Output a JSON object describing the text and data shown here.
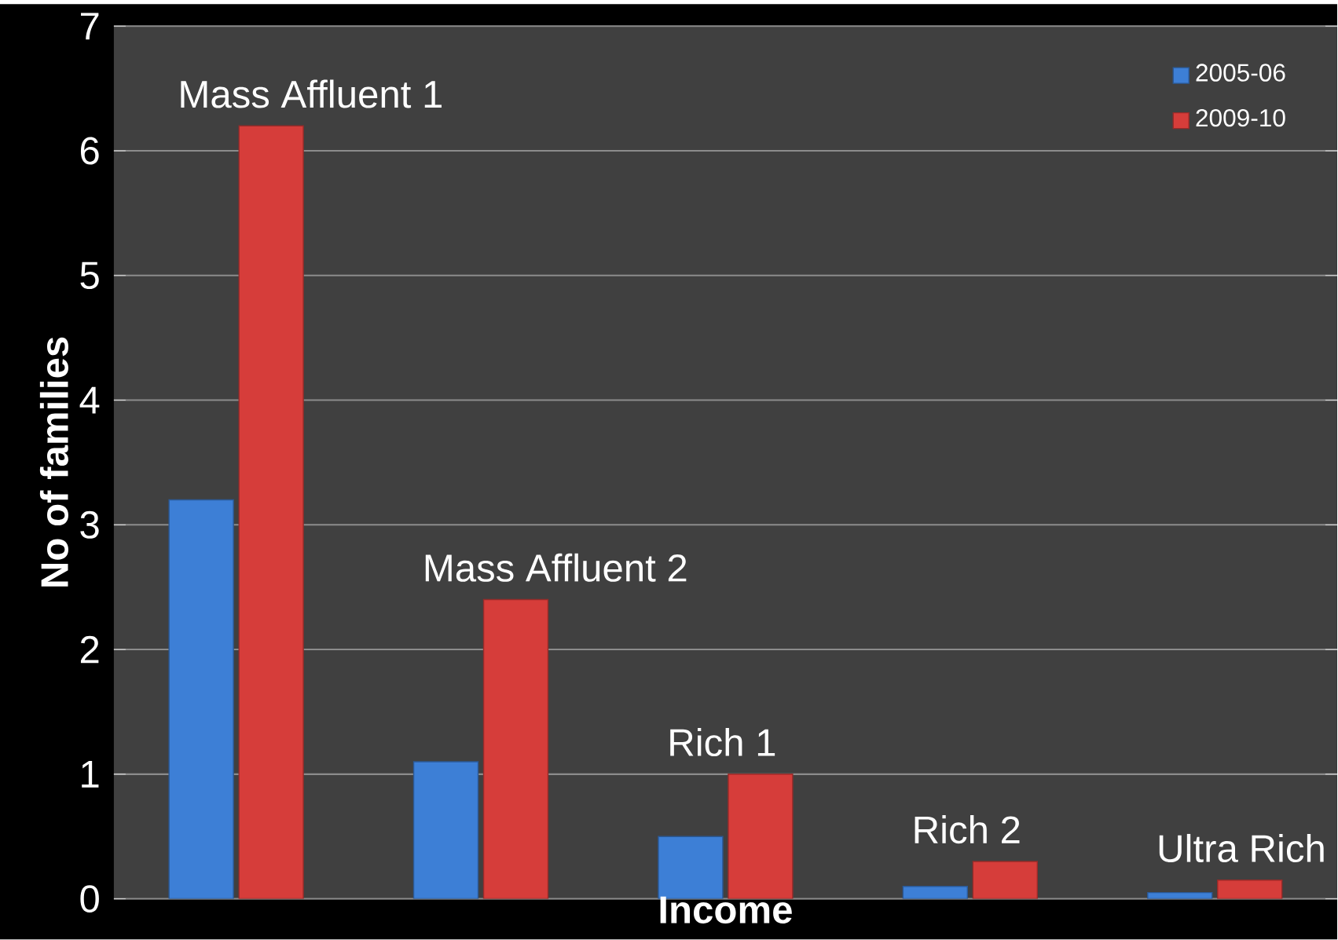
{
  "chart_data": {
    "type": "bar",
    "xlabel": "Income",
    "ylabel": "No of families",
    "categories": [
      "Mass Affluent 1",
      "Mass Affluent 2",
      "Rich 1",
      "Rich 2",
      "Ultra Rich"
    ],
    "series": [
      {
        "name": "2005-06",
        "color": "#3d7fd6",
        "values": [
          3.2,
          1.1,
          0.5,
          0.1,
          0.05
        ]
      },
      {
        "name": "2009-10",
        "color": "#d63d3a",
        "values": [
          6.2,
          2.4,
          1.0,
          0.3,
          0.15
        ]
      }
    ],
    "ylim": [
      0,
      7
    ],
    "yticks": [
      0,
      1,
      2,
      3,
      4,
      5,
      6,
      7
    ],
    "grid": "y",
    "legend": "top right"
  }
}
